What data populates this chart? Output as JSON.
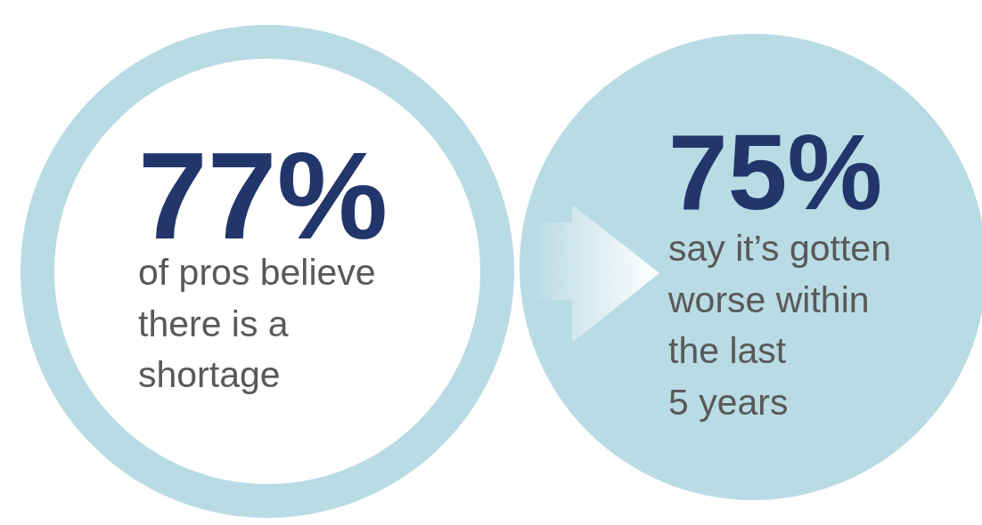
{
  "chart_data": {
    "type": "other",
    "categories": [
      "of pros believe\nthere is a\nshortage",
      "say it’s gotten\nworse within\nthe last\n5 years"
    ],
    "values": [
      77,
      75
    ],
    "value_labels": [
      "77%",
      "75%"
    ],
    "colors": [
      "#b9dbe4",
      "#b9dbe4"
    ]
  }
}
